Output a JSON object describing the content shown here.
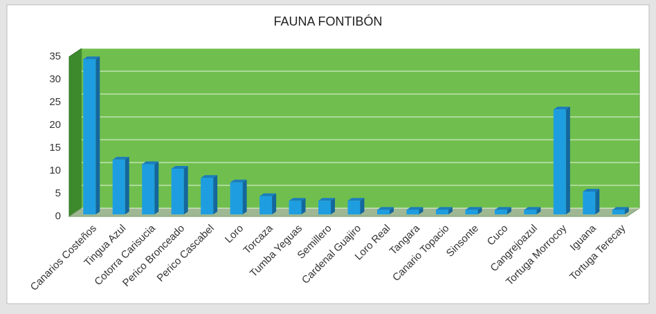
{
  "chart_data": {
    "type": "bar",
    "title": "FAUNA FONTIBÓN",
    "categories": [
      "Canarios Costeños",
      "Tingua Azul",
      "Cotorra Carisucia",
      "Perico Bronceado",
      "Perico Cascabel",
      "Loro",
      "Torcaza",
      "Tumba Yeguas",
      "Semillero",
      "Cardenal Guajiro",
      "Loro Real",
      "Tangara",
      "Canario Topacio",
      "Sinsonte",
      "Cuco",
      "Cangrejoazul",
      "Tortuga Morrocoy",
      "Iguana",
      "Tortuga Terecay"
    ],
    "values": [
      34,
      12,
      11,
      10,
      8,
      7,
      4,
      3,
      3,
      3,
      1,
      1,
      1,
      1,
      1,
      1,
      23,
      5,
      1
    ],
    "color": "#1e9ee0",
    "ylim": [
      0,
      35
    ],
    "yticks": [
      0,
      5,
      10,
      15,
      20,
      25,
      30,
      35
    ],
    "grid": true
  }
}
